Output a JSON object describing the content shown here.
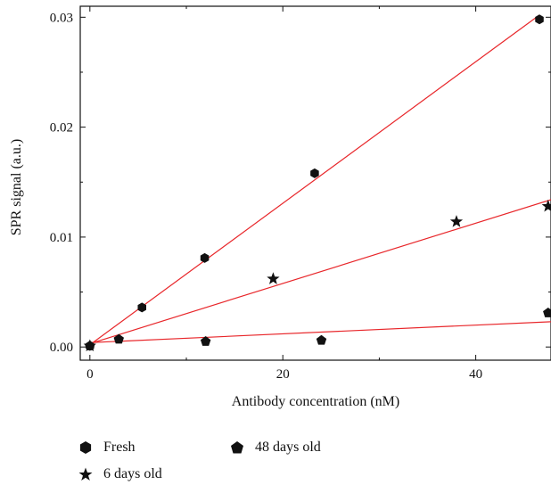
{
  "chart_data": {
    "type": "scatter",
    "xlabel": "Antibody concentration (nM)",
    "ylabel": "SPR signal (a.u.)",
    "xlim": [
      -1,
      47.8
    ],
    "ylim": [
      -0.0012,
      0.031
    ],
    "x_ticks": [
      0,
      20,
      40
    ],
    "x_tick_labels": [
      "0",
      "20",
      "40"
    ],
    "x_minor_ticks": [
      10,
      30
    ],
    "y_ticks": [
      0,
      0.01,
      0.02,
      0.03
    ],
    "y_tick_labels": [
      "0.00",
      "0.01",
      "0.02",
      "0.03"
    ],
    "y_minor_ticks": [
      0.005,
      0.015,
      0.025
    ],
    "legend_position": "bottom",
    "fit_color": "#e8262a",
    "marker_color": "#111111",
    "series": [
      {
        "name": "Fresh",
        "marker": "hexagon",
        "points": [
          [
            0,
            0.0001
          ],
          [
            5.4,
            0.0036
          ],
          [
            11.9,
            0.0081
          ],
          [
            23.3,
            0.0158
          ],
          [
            46.6,
            0.0298
          ]
        ],
        "fit": [
          [
            0,
            0.0002
          ],
          [
            46.6,
            0.0302
          ]
        ]
      },
      {
        "name": "6 days old",
        "marker": "star",
        "points": [
          [
            0,
            0.0001
          ],
          [
            19.0,
            0.0062
          ],
          [
            38.0,
            0.0114
          ],
          [
            47.5,
            0.0128
          ]
        ],
        "fit": [
          [
            0,
            0.0003
          ],
          [
            47.8,
            0.0134
          ]
        ]
      },
      {
        "name": "48 days old",
        "marker": "pentagon",
        "points": [
          [
            0,
            0.0001
          ],
          [
            3.0,
            0.0007
          ],
          [
            12.0,
            0.0005
          ],
          [
            24.0,
            0.0006
          ],
          [
            47.5,
            0.0031
          ]
        ],
        "fit": [
          [
            0,
            0.0004
          ],
          [
            47.8,
            0.0023
          ]
        ]
      }
    ]
  }
}
